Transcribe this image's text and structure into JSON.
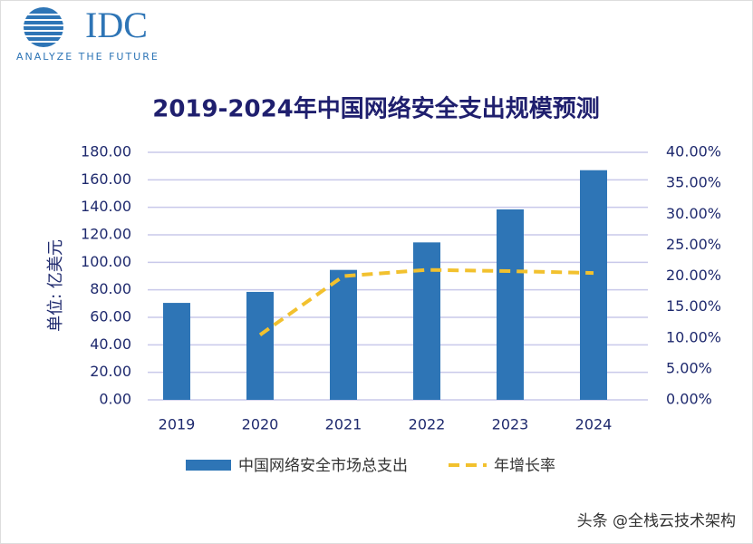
{
  "logo": {
    "name": "IDC",
    "tagline": "ANALYZE THE FUTURE"
  },
  "watermark": "头条 @全栈云技术架构",
  "chart_data": {
    "type": "bar_line",
    "title": "2019-2024年中国网络安全支出规模预测",
    "y_label": "单位: 亿美元",
    "categories": [
      "2019",
      "2020",
      "2021",
      "2022",
      "2023",
      "2024"
    ],
    "series": [
      {
        "name": "中国网络安全市场总支出",
        "type": "bar",
        "color": "#2e75b6",
        "values": [
          70.5,
          78.5,
          94.5,
          114.5,
          138.5,
          167
        ]
      },
      {
        "name": "年增长率",
        "type": "line",
        "axis": "y2",
        "color": "#f2c12e",
        "dashed": true,
        "values": [
          null,
          10.5,
          20,
          21,
          20.8,
          20.5
        ]
      }
    ],
    "ylim": [
      0,
      180
    ],
    "yticks": [
      {
        "value": 0,
        "label": "0.00"
      },
      {
        "value": 20,
        "label": "20.00"
      },
      {
        "value": 40,
        "label": "40.00"
      },
      {
        "value": 60,
        "label": "60.00"
      },
      {
        "value": 80,
        "label": "80.00"
      },
      {
        "value": 100,
        "label": "100.00"
      },
      {
        "value": 120,
        "label": "120.00"
      },
      {
        "value": 140,
        "label": "140.00"
      },
      {
        "value": 160,
        "label": "160.00"
      },
      {
        "value": 180,
        "label": "180.00"
      }
    ],
    "y2lim": [
      0,
      40
    ],
    "y2ticks": [
      {
        "value": 0,
        "label": "0.00%"
      },
      {
        "value": 5,
        "label": "5.00%"
      },
      {
        "value": 10,
        "label": "10.00%"
      },
      {
        "value": 15,
        "label": "15.00%"
      },
      {
        "value": 20,
        "label": "20.00%"
      },
      {
        "value": 25,
        "label": "25.00%"
      },
      {
        "value": 30,
        "label": "30.00%"
      },
      {
        "value": 35,
        "label": "35.00%"
      },
      {
        "value": 40,
        "label": "40.00%"
      }
    ],
    "grid": true
  }
}
